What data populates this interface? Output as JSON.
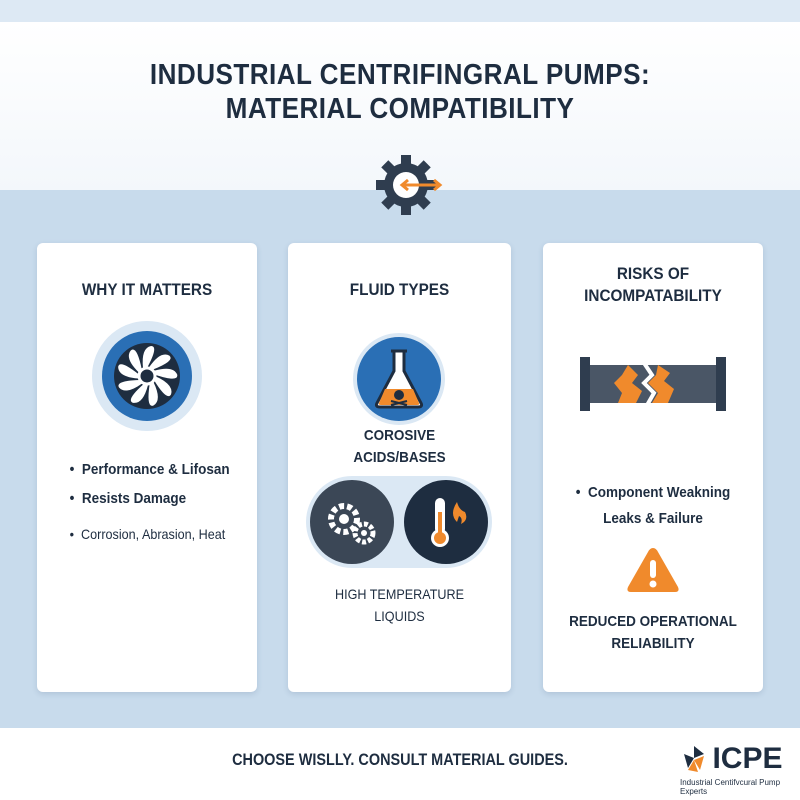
{
  "title": {
    "line1": "INDUSTRIAL CENTRIFINGRAL PUMPS:",
    "line2": "MATERIAL COMPATIBILITY"
  },
  "cards": [
    {
      "heading": "WHY IT MATTERS",
      "bullets": [
        "Performance & Lifosan",
        "Resists Damage",
        "Corrosion, Abrasion, Heat"
      ]
    },
    {
      "heading": "FLUID TYPES",
      "label1a": "COROSIVE",
      "label1b": "ACIDS/BASES",
      "label2a": "HIGH TEMPERATURE",
      "label2b": "LIQUIDS"
    },
    {
      "heading_a": "RISKS OF",
      "heading_b": "INCOMPATABILITY",
      "bullets": [
        "Component Weakning",
        "Leaks & Failure"
      ],
      "warning_a": "REDUCED OPERATIONAL",
      "warning_b": "RELIABILITY"
    }
  ],
  "footer": {
    "tagline": "CHOOSE WISLLY. CONSULT MATERIAL GUIDES.",
    "logo_text": "ICPE",
    "logo_sub": "Industrial Centifvcural Pump Experts"
  },
  "colors": {
    "navy": "#1e2d40",
    "blue": "#2a6fb5",
    "orange": "#f08a2c",
    "background": "#c8dbec"
  },
  "icons": [
    "gear-arrows-icon",
    "turbine-icon",
    "flask-hazard-icon",
    "gears-icon",
    "thermometer-fire-icon",
    "broken-pipe-icon",
    "warning-icon"
  ]
}
